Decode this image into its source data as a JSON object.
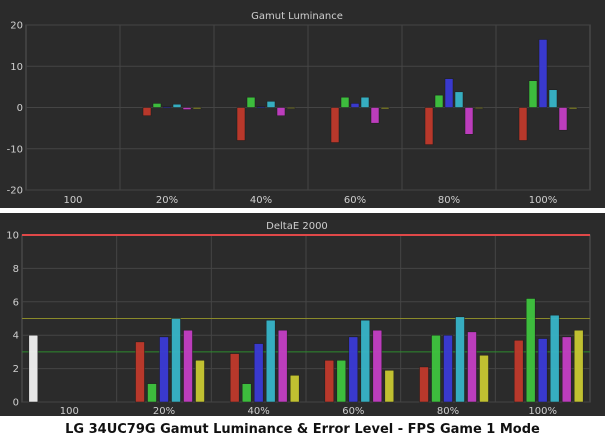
{
  "caption": "LG 34UC79G Gamut Luminance & Error Level - FPS Game 1 Mode",
  "colors": {
    "white": "#f2f2f2",
    "red": "#c0392b",
    "green": "#3ec43e",
    "blue": "#3a3ad6",
    "cyan": "#37b5c8",
    "magenta": "#c43ec4",
    "yellow": "#c8c832",
    "background": "#2b2b2b",
    "grid": "#454545"
  },
  "chart_data": [
    {
      "type": "bar",
      "title": "Gamut Luminance",
      "categories": [
        "100",
        "20%",
        "40%",
        "60%",
        "80%",
        "100%"
      ],
      "ylim": [
        -20,
        20
      ],
      "yticks": [
        "20",
        "10",
        "0",
        "-10",
        "-20"
      ],
      "grid": true,
      "legend": "none",
      "series": [
        {
          "color": "white",
          "values": [
            0,
            0,
            0,
            0,
            0,
            0
          ]
        },
        {
          "color": "red",
          "values": [
            0,
            -2,
            -8,
            -8.5,
            -9,
            -8
          ]
        },
        {
          "color": "green",
          "values": [
            0,
            1,
            2.5,
            2.5,
            3,
            6.5
          ]
        },
        {
          "color": "blue",
          "values": [
            0,
            0.2,
            0.2,
            1,
            7,
            16.5
          ]
        },
        {
          "color": "cyan",
          "values": [
            0,
            0.8,
            1.5,
            2.5,
            3.8,
            4.3
          ]
        },
        {
          "color": "magenta",
          "values": [
            0,
            -0.5,
            -2,
            -3.8,
            -6.5,
            -5.5
          ]
        },
        {
          "color": "yellow",
          "values": [
            0,
            -0.3,
            -0.2,
            -0.3,
            -0.2,
            -0.3
          ]
        }
      ]
    },
    {
      "type": "bar",
      "title": "DeltaE 2000",
      "categories": [
        "100",
        "20%",
        "40%",
        "60%",
        "80%",
        "100%"
      ],
      "ylim": [
        0,
        10
      ],
      "yticks": [
        "10",
        "8",
        "6",
        "4",
        "2",
        "0"
      ],
      "reference_lines": [
        {
          "value": 10,
          "color": "#e04848"
        },
        {
          "value": 5,
          "color": "#8a8a2a"
        },
        {
          "value": 3,
          "color": "#2e8b2e"
        }
      ],
      "grid": true,
      "legend": "none",
      "series": [
        {
          "color": "white",
          "values": [
            4.0,
            0,
            0,
            0,
            0,
            0
          ]
        },
        {
          "color": "red",
          "values": [
            0,
            3.6,
            2.9,
            2.5,
            2.1,
            3.7
          ]
        },
        {
          "color": "green",
          "values": [
            0,
            1.1,
            1.1,
            2.5,
            4.0,
            6.2
          ]
        },
        {
          "color": "blue",
          "values": [
            0,
            3.9,
            3.5,
            3.9,
            4.0,
            3.8
          ]
        },
        {
          "color": "cyan",
          "values": [
            0,
            5.0,
            4.9,
            4.9,
            5.1,
            5.2
          ]
        },
        {
          "color": "magenta",
          "values": [
            0,
            4.3,
            4.3,
            4.3,
            4.2,
            3.9
          ]
        },
        {
          "color": "yellow",
          "values": [
            0,
            2.5,
            1.6,
            1.9,
            2.8,
            4.3
          ]
        }
      ]
    }
  ]
}
